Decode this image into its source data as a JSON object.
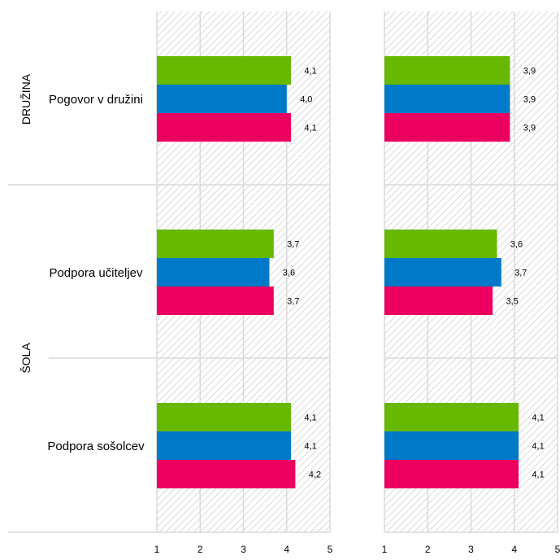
{
  "chart_data": {
    "type": "bar",
    "orientation": "horizontal",
    "groups": [
      {
        "label": "DRUŽINA",
        "categories": [
          "Pogovor v družini"
        ]
      },
      {
        "label": "ŠOLA",
        "categories": [
          "Podpora učiteljev",
          "Podpora sošolcev"
        ]
      }
    ],
    "categories": [
      "Pogovor v družini",
      "Podpora učiteljev",
      "Podpora sošolcev"
    ],
    "xlim": [
      1,
      5
    ],
    "xticks": [
      "1",
      "2",
      "3",
      "4",
      "5"
    ],
    "grid": true,
    "panels": [
      {
        "series": [
          {
            "color": "#66b800",
            "values": [
              4.1,
              3.7,
              4.1
            ],
            "labels": [
              "4,1",
              "3,7",
              "4,1"
            ]
          },
          {
            "color": "#0079c8",
            "values": [
              4.0,
              3.6,
              4.1
            ],
            "labels": [
              "4,0",
              "3,6",
              "4,1"
            ]
          },
          {
            "color": "#eb0060",
            "values": [
              4.1,
              3.7,
              4.2
            ],
            "labels": [
              "4,1",
              "3,7",
              "4,2"
            ]
          }
        ]
      },
      {
        "series": [
          {
            "color": "#66b800",
            "values": [
              3.9,
              3.6,
              4.1
            ],
            "labels": [
              "3,9",
              "3,6",
              "4,1"
            ]
          },
          {
            "color": "#0079c8",
            "values": [
              3.9,
              3.7,
              4.1
            ],
            "labels": [
              "3,9",
              "3,7",
              "4,1"
            ]
          },
          {
            "color": "#eb0060",
            "values": [
              3.9,
              3.5,
              4.1
            ],
            "labels": [
              "3,9",
              "3,5",
              "4,1"
            ]
          }
        ]
      }
    ]
  }
}
